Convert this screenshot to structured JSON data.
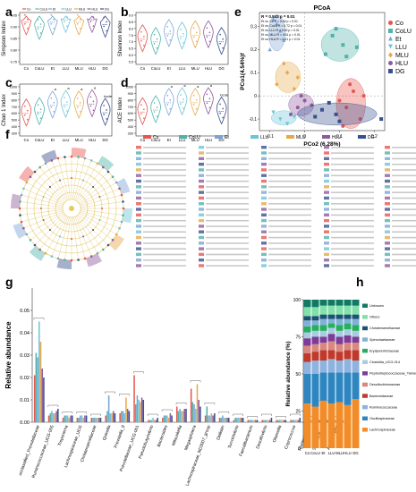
{
  "panels": {
    "a": "a",
    "b": "b",
    "c": "c",
    "d": "d",
    "e": "e",
    "f": "f",
    "g": "g",
    "h": "h"
  },
  "groups": [
    "Co",
    "CoLU",
    "Et",
    "LLU",
    "MLU",
    "HLU",
    "DG"
  ],
  "colors": {
    "Co": "#e8554e",
    "CoLU": "#4fb3a9",
    "Et": "#7aa4d6",
    "LLU": "#6ec4d8",
    "MLU": "#e6a94a",
    "HLU": "#8e5a9e",
    "DG": "#3a4f8f"
  },
  "chart_data": [
    {
      "panel": "a",
      "type": "violin",
      "ylabel": "Simpson Index",
      "categories": [
        "Co",
        "CoLU",
        "Et",
        "LLU",
        "MLU",
        "HLU",
        "DG"
      ],
      "ylim": [
        0.75,
        0.95
      ],
      "yticks": [
        "0.95",
        "0.90",
        "0.85",
        "0.80",
        "0.75"
      ],
      "medians": [
        0.92,
        0.9,
        0.92,
        0.93,
        0.92,
        0.93,
        0.91
      ]
    },
    {
      "panel": "b",
      "type": "violin",
      "ylabel": "Shannon Index",
      "categories": [
        "Co",
        "CoLU",
        "Et",
        "LLU",
        "MLU",
        "HLU",
        "DG"
      ],
      "ylim": [
        5.5,
        9.0
      ],
      "yticks": [
        "9.0",
        "8.5",
        "8.0",
        "7.5",
        "7.0",
        "6.5",
        "6.0",
        "5.5"
      ],
      "medians": [
        7.2,
        7.0,
        7.6,
        7.4,
        7.5,
        7.5,
        7.0
      ]
    },
    {
      "panel": "c",
      "type": "violin",
      "ylabel": "Chao 1 Index",
      "categories": [
        "Co",
        "CoLU",
        "Et",
        "LLU",
        "MLU",
        "HLU",
        "DG"
      ],
      "ylim": [
        300,
        1000
      ],
      "yticks": [
        "1000",
        "900",
        "800",
        "700",
        "600",
        "500",
        "400",
        "300"
      ],
      "medians": [
        600,
        620,
        720,
        730,
        720,
        740,
        610
      ],
      "annotations": [
        "",
        "",
        "a",
        "a",
        "a",
        "a",
        "bcde"
      ]
    },
    {
      "panel": "d",
      "type": "violin",
      "ylabel": "ACE Index",
      "categories": [
        "Co",
        "CoLU",
        "Et",
        "LLU",
        "MLU",
        "HLU",
        "DG"
      ],
      "ylim": [
        300,
        1000
      ],
      "yticks": [
        "1000",
        "900",
        "800",
        "700",
        "600",
        "500",
        "400",
        "300"
      ],
      "medians": [
        620,
        650,
        760,
        770,
        760,
        780,
        630
      ],
      "annotations": [
        "",
        "",
        "a",
        "a",
        "a",
        "a",
        "bcde"
      ]
    },
    {
      "panel": "e",
      "type": "scatter",
      "title": "PCoA",
      "xlabel": "PCo2 (6.28%)",
      "ylabel": "PCo1(4.54%)f",
      "xlim": [
        -0.13,
        0.23
      ],
      "ylim": [
        -0.15,
        0.36
      ],
      "xticks": [
        "-0.1",
        "0",
        "0.1",
        "0.2"
      ],
      "yticks": [
        "0.3",
        "0.2",
        "0.1",
        "0",
        "-0.1"
      ],
      "stats": [
        "R = 0.543 p = 0.01",
        "Et vs. Co   R = 0.62 p = 0.01",
        "Et vs. CoLU  R = 0.72 p = 0.01",
        "Et vs. LLU   R = 0.52 p = 0.01",
        "Et vs. MLU   R = 0.61 p = 0.01",
        "Et vs. HLU   R = 0.41 p = 0.01"
      ],
      "legend": [
        "Co",
        "CoLU",
        "Et",
        "LLU",
        "MLU",
        "HLU",
        "DG"
      ],
      "series": [
        {
          "name": "Co",
          "points": [
            [
              0.12,
              -0.05
            ],
            [
              0.14,
              0.02
            ],
            [
              0.16,
              -0.1
            ],
            [
              0.1,
              -0.02
            ],
            [
              0.13,
              0.05
            ],
            [
              0.11,
              -0.13
            ],
            [
              0.17,
              0.0
            ]
          ]
        },
        {
          "name": "CoLU",
          "points": [
            [
              0.08,
              0.26
            ],
            [
              0.11,
              0.22
            ],
            [
              0.06,
              0.18
            ],
            [
              0.15,
              0.21
            ],
            [
              0.09,
              0.29
            ],
            [
              0.12,
              0.17
            ]
          ]
        },
        {
          "name": "Et",
          "points": [
            [
              -0.08,
              0.31
            ],
            [
              -0.07,
              0.28
            ],
            [
              -0.1,
              0.2
            ],
            [
              -0.06,
              0.24
            ],
            [
              -0.09,
              0.33
            ]
          ]
        },
        {
          "name": "LLU",
          "points": [
            [
              -0.07,
              -0.1
            ],
            [
              -0.05,
              -0.12
            ],
            [
              -0.09,
              -0.07
            ],
            [
              -0.03,
              -0.09
            ]
          ]
        },
        {
          "name": "MLU",
          "points": [
            [
              -0.05,
              0.1
            ],
            [
              -0.08,
              0.05
            ],
            [
              -0.02,
              0.08
            ],
            [
              -0.06,
              0.14
            ],
            [
              -0.03,
              0.03
            ]
          ]
        },
        {
          "name": "HLU",
          "points": [
            [
              -0.02,
              -0.05
            ],
            [
              0.0,
              -0.02
            ],
            [
              -0.04,
              -0.08
            ],
            [
              0.02,
              -0.04
            ],
            [
              -0.01,
              0.0
            ]
          ]
        },
        {
          "name": "DG",
          "points": [
            [
              0.05,
              -0.06
            ],
            [
              0.09,
              -0.08
            ],
            [
              0.03,
              -0.09
            ],
            [
              0.07,
              -0.03
            ],
            [
              0.1,
              -0.11
            ],
            [
              0.22,
              -0.1
            ]
          ]
        }
      ]
    },
    {
      "panel": "f",
      "type": "cladogram",
      "legend_groups": [
        "Co",
        "CoLU",
        "Et",
        "LLU",
        "MLU",
        "HLU",
        "DG"
      ]
    },
    {
      "panel": "g",
      "type": "bar",
      "ylabel": "Relative abundance",
      "ylim": [
        0,
        0.06
      ],
      "yticks": [
        "0.00",
        "0.01",
        "0.02",
        "0.03",
        "0.04",
        "0.05"
      ],
      "categories": [
        "unclassified_Prevotellaceae",
        "Ruminococcaceae_UCG-005",
        "Treponema",
        "Lachnospiraceae_UCG",
        "Christensenellaceae",
        "Quinella",
        "Prevotella_9",
        "Prevotellaceae_UCG-001",
        "Pseudobutyrivibrio",
        "Bacteroides",
        "Mitsuokella",
        "Megasphaera",
        "Lachnospiraceae_ND3007_group",
        "Dialister",
        "Succinivibrio",
        "Faecalibacterium",
        "Desulfovibrio",
        "Olsenella",
        "Coprococcus",
        "Ruminobacter",
        "Selenomonas",
        "Alloprevotella"
      ],
      "series": [
        {
          "name": "Co",
          "values": [
            0.021,
            0.003,
            0.002,
            0.002,
            0.002,
            0.003,
            0.004,
            0.021,
            0.001,
            0.002,
            0.007,
            0.015,
            0.003,
            0.002,
            0.001,
            0.001,
            0.001,
            0.001,
            0.001,
            0.001,
            0.001,
            0.001
          ]
        },
        {
          "name": "CoLU",
          "values": [
            0.031,
            0.004,
            0.003,
            0.002,
            0.002,
            0.005,
            0.005,
            0.008,
            0.001,
            0.003,
            0.005,
            0.009,
            0.007,
            0.002,
            0.002,
            0.001,
            0.001,
            0.001,
            0.001,
            0.001,
            0.008,
            0.001
          ]
        },
        {
          "name": "Et",
          "values": [
            0.029,
            0.005,
            0.003,
            0.003,
            0.002,
            0.012,
            0.005,
            0.012,
            0.001,
            0.003,
            0.006,
            0.008,
            0.003,
            0.003,
            0.002,
            0.001,
            0.001,
            0.001,
            0.001,
            0.001,
            0.001,
            0.001
          ]
        },
        {
          "name": "LLU",
          "values": [
            0.045,
            0.004,
            0.003,
            0.003,
            0.002,
            0.004,
            0.004,
            0.01,
            0.002,
            0.003,
            0.005,
            0.006,
            0.003,
            0.002,
            0.002,
            0.001,
            0.001,
            0.001,
            0.001,
            0.001,
            0.002,
            0.001
          ]
        },
        {
          "name": "MLU",
          "values": [
            0.036,
            0.004,
            0.002,
            0.002,
            0.002,
            0.004,
            0.011,
            0.009,
            0.001,
            0.002,
            0.005,
            0.017,
            0.004,
            0.002,
            0.002,
            0.001,
            0.001,
            0.001,
            0.001,
            0.001,
            0.001,
            0.001
          ]
        },
        {
          "name": "HLU",
          "values": [
            0.024,
            0.005,
            0.003,
            0.003,
            0.002,
            0.005,
            0.006,
            0.011,
            0.001,
            0.004,
            0.006,
            0.01,
            0.003,
            0.002,
            0.002,
            0.001,
            0.001,
            0.001,
            0.001,
            0.001,
            0.001,
            0.001
          ]
        },
        {
          "name": "DG",
          "values": [
            0.02,
            0.006,
            0.003,
            0.003,
            0.002,
            0.004,
            0.005,
            0.01,
            0.002,
            0.003,
            0.006,
            0.007,
            0.004,
            0.002,
            0.002,
            0.001,
            0.002,
            0.001,
            0.002,
            0.001,
            0.001,
            0.001
          ]
        }
      ]
    },
    {
      "panel": "h",
      "type": "bar",
      "stacked": true,
      "ylabel": "Relative abundance (%)",
      "ylim": [
        0,
        100
      ],
      "yticks": [
        "100",
        "75",
        "50",
        "25",
        "0"
      ],
      "categories": [
        "Co",
        "CoLU",
        "Et",
        "LLU",
        "MLU",
        "HLU",
        "DG"
      ],
      "series": [
        {
          "name": "Lachnospiraceae",
          "color": "#f28c28",
          "values": [
            30,
            28,
            32,
            30,
            31,
            29,
            33
          ]
        },
        {
          "name": "Oscillospiraceae",
          "color": "#2e86c1",
          "values": [
            20,
            22,
            19,
            21,
            20,
            22,
            18
          ]
        },
        {
          "name": "Ruminococcaceae",
          "color": "#8fb3df",
          "values": [
            8,
            9,
            8,
            9,
            8,
            9,
            8
          ]
        },
        {
          "name": "Bacteroidaceae",
          "color": "#c0392b",
          "values": [
            6,
            6,
            7,
            6,
            6,
            6,
            7
          ]
        },
        {
          "name": "Desulfovibrionaceae",
          "color": "#d98880",
          "values": [
            5,
            5,
            5,
            6,
            5,
            5,
            5
          ]
        },
        {
          "name": "Peptostreptococcaceae_Tannerellales",
          "color": "#7d3c98",
          "values": [
            5,
            5,
            4,
            5,
            5,
            5,
            4
          ]
        },
        {
          "name": "Clostridia_UCG-014",
          "color": "#a9cce3",
          "values": [
            4,
            4,
            4,
            4,
            4,
            4,
            4
          ]
        },
        {
          "name": "Erysipelotrichaceae",
          "color": "#27ae60",
          "values": [
            4,
            4,
            4,
            3,
            4,
            4,
            4
          ]
        },
        {
          "name": "Spirochaetaceae",
          "color": "#7fb3d5",
          "values": [
            4,
            3,
            4,
            3,
            4,
            3,
            4
          ]
        },
        {
          "name": "Christensenellaceae",
          "color": "#1a5276",
          "values": [
            3,
            3,
            3,
            3,
            3,
            3,
            3
          ]
        },
        {
          "name": "Others",
          "color": "#82e0aa",
          "values": [
            6,
            6,
            6,
            6,
            6,
            6,
            6
          ]
        },
        {
          "name": "Unknown",
          "color": "#117a65",
          "values": [
            5,
            5,
            4,
            4,
            4,
            4,
            4
          ]
        }
      ]
    }
  ]
}
